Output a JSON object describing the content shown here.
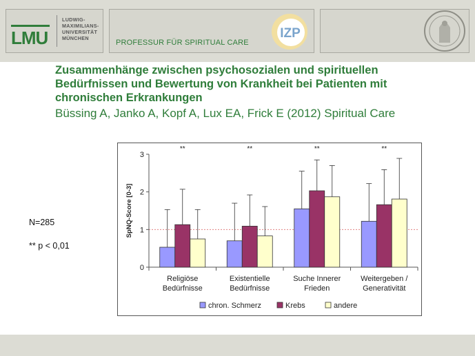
{
  "header": {
    "logo_text": "LMU",
    "university_lines": [
      "LUDWIG-",
      "MAXIMILIANS-",
      "UNIVERSITÄT",
      "MÜNCHEN"
    ],
    "department": "PROFESSUR FÜR SPIRITUAL CARE",
    "izp_logo_text": "IZP"
  },
  "slide": {
    "title_lines": [
      "Zusammenhänge zwischen psychosozialen und spirituellen",
      "Bedürfnissen und Bewertung von Krankheit bei Patienten mit",
      "chronischen Erkrankungen"
    ],
    "citation": "Büssing A, Janko A, Kopf A, Lux EA, Frick E (2012) Spiritual Care",
    "sample_size": "N=285",
    "significance_note": "** p < 0,01"
  },
  "chart_data": {
    "type": "bar",
    "ylabel": "SpNQ-Score [0-3]",
    "ylim": [
      0,
      3
    ],
    "yticks": [
      "0",
      "1",
      "2",
      "3"
    ],
    "reference_line": 1,
    "legend_position": "bottom",
    "categories": [
      [
        "Religiöse",
        "Bedürfnisse"
      ],
      [
        "Existentielle",
        "Bedürfnisse"
      ],
      [
        "Suche Innerer",
        "Frieden"
      ],
      [
        "Weitergeben /",
        "Generativität"
      ]
    ],
    "significance": [
      "**",
      "**",
      "**",
      "**"
    ],
    "series": [
      {
        "name": "chron. Schmerz",
        "color": "#9999ff",
        "values": [
          0.53,
          0.7,
          1.55,
          1.22
        ],
        "errors": [
          1.0,
          1.0,
          1.0,
          1.0
        ]
      },
      {
        "name": "Krebs",
        "color": "#993366",
        "values": [
          1.13,
          1.09,
          2.03,
          1.66
        ],
        "errors": [
          0.94,
          0.83,
          0.82,
          0.93
        ]
      },
      {
        "name": "andere",
        "color": "#ffffcc",
        "values": [
          0.75,
          0.83,
          1.87,
          1.81
        ],
        "errors": [
          0.78,
          0.78,
          0.83,
          1.08
        ]
      }
    ]
  }
}
